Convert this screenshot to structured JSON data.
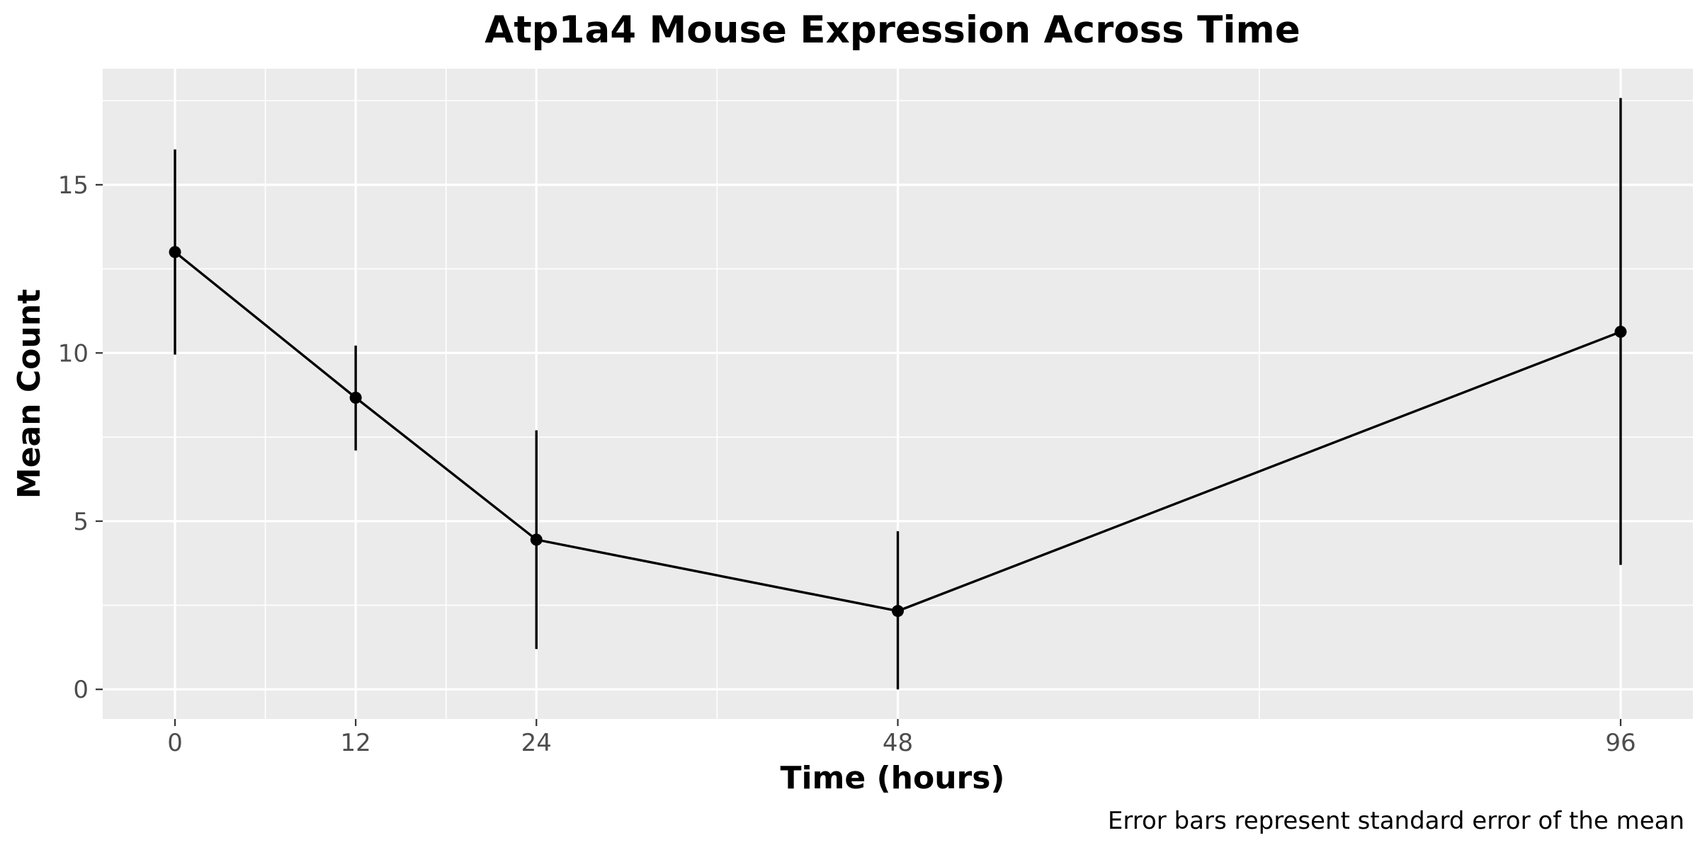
{
  "chart_data": {
    "type": "line",
    "title": "Atp1a4 Mouse Expression Across Time",
    "xlabel": "Time (hours)",
    "ylabel": "Mean Count",
    "caption": "Error bars represent standard error of the mean",
    "x": [
      0,
      12,
      24,
      48,
      96
    ],
    "series": [
      {
        "values": [
          13.0,
          8.67,
          4.45,
          2.33,
          10.63
        ],
        "error_low": [
          9.95,
          7.1,
          1.2,
          0.0,
          3.7
        ],
        "error_high": [
          16.05,
          10.22,
          7.7,
          4.7,
          17.58
        ]
      }
    ],
    "xlim": [
      -4.8,
      100.8
    ],
    "ylim": [
      -0.88,
      18.45
    ],
    "x_ticks": [
      0,
      12,
      24,
      48,
      96
    ],
    "x_tick_labels": [
      "0",
      "12",
      "24",
      "48",
      "96"
    ],
    "x_minor_ticks": [
      6,
      18,
      36,
      72
    ],
    "y_ticks": [
      0,
      5,
      10,
      15
    ],
    "y_tick_labels": [
      "0",
      "5",
      "10",
      "15"
    ],
    "y_minor_ticks": [
      2.5,
      7.5,
      12.5,
      17.5
    ],
    "grid": true,
    "colors": {
      "panel_background": "#ebebeb",
      "grid": "#ffffff",
      "line": "#000000",
      "tick_text": "#4d4d4d",
      "tick_mark": "#333333"
    }
  }
}
